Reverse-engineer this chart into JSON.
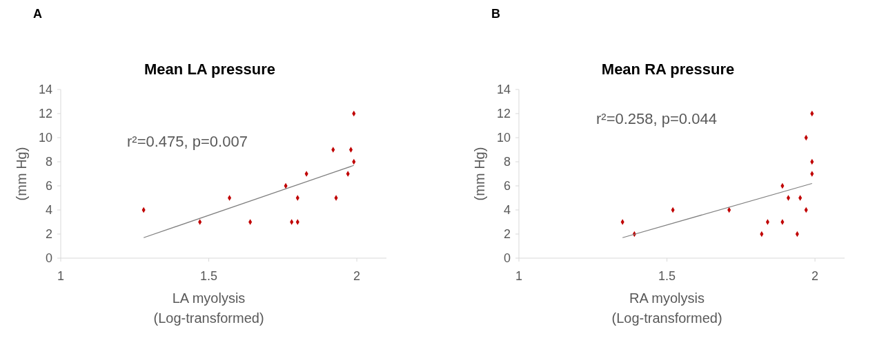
{
  "chart_data": [
    {
      "type": "scatter",
      "title": "Mean LA pressure",
      "xlabel": "LA myolysis\n(Log-transformed)",
      "ylabel": "(mm Hg)",
      "annotations": [
        "A",
        "r²=0.475, p=0.007"
      ],
      "xlim": [
        1,
        2.1
      ],
      "xticks": [
        1,
        1.5,
        2
      ],
      "ylim": [
        0,
        14
      ],
      "yticks": [
        0,
        2,
        4,
        6,
        8,
        10,
        12,
        14
      ],
      "series": [
        {
          "color": "#c00000",
          "marker": "diamond",
          "x": [
            1.28,
            1.47,
            1.57,
            1.64,
            1.76,
            1.78,
            1.8,
            1.8,
            1.83,
            1.92,
            1.93,
            1.97,
            1.98,
            1.99,
            1.99
          ],
          "values": [
            4,
            3,
            5,
            3,
            6,
            3,
            3,
            5,
            7,
            9,
            5,
            7,
            9,
            8,
            12
          ]
        },
        {
          "type": "line",
          "color": "#808080",
          "x": [
            1.28,
            1.99
          ],
          "values": [
            1.7,
            7.7
          ]
        }
      ]
    },
    {
      "type": "scatter",
      "title": "Mean RA pressure",
      "xlabel": "RA myolysis\n(Log-transformed)",
      "ylabel": "(mm Hg)",
      "annotations": [
        "B",
        "r²=0.258, p=0.044"
      ],
      "xlim": [
        1,
        2.1
      ],
      "xticks": [
        1,
        1.5,
        2
      ],
      "ylim": [
        0,
        14
      ],
      "yticks": [
        0,
        2,
        4,
        6,
        8,
        10,
        12,
        14
      ],
      "series": [
        {
          "color": "#c00000",
          "marker": "diamond",
          "x": [
            1.35,
            1.39,
            1.52,
            1.71,
            1.82,
            1.84,
            1.89,
            1.89,
            1.91,
            1.94,
            1.95,
            1.97,
            1.97,
            1.99,
            1.99,
            1.99
          ],
          "values": [
            3,
            2,
            4,
            4,
            2,
            3,
            6,
            3,
            5,
            2,
            5,
            10,
            4,
            12,
            8,
            7
          ]
        },
        {
          "type": "line",
          "color": "#808080",
          "x": [
            1.35,
            1.99
          ],
          "values": [
            1.7,
            6.2
          ]
        }
      ]
    }
  ]
}
